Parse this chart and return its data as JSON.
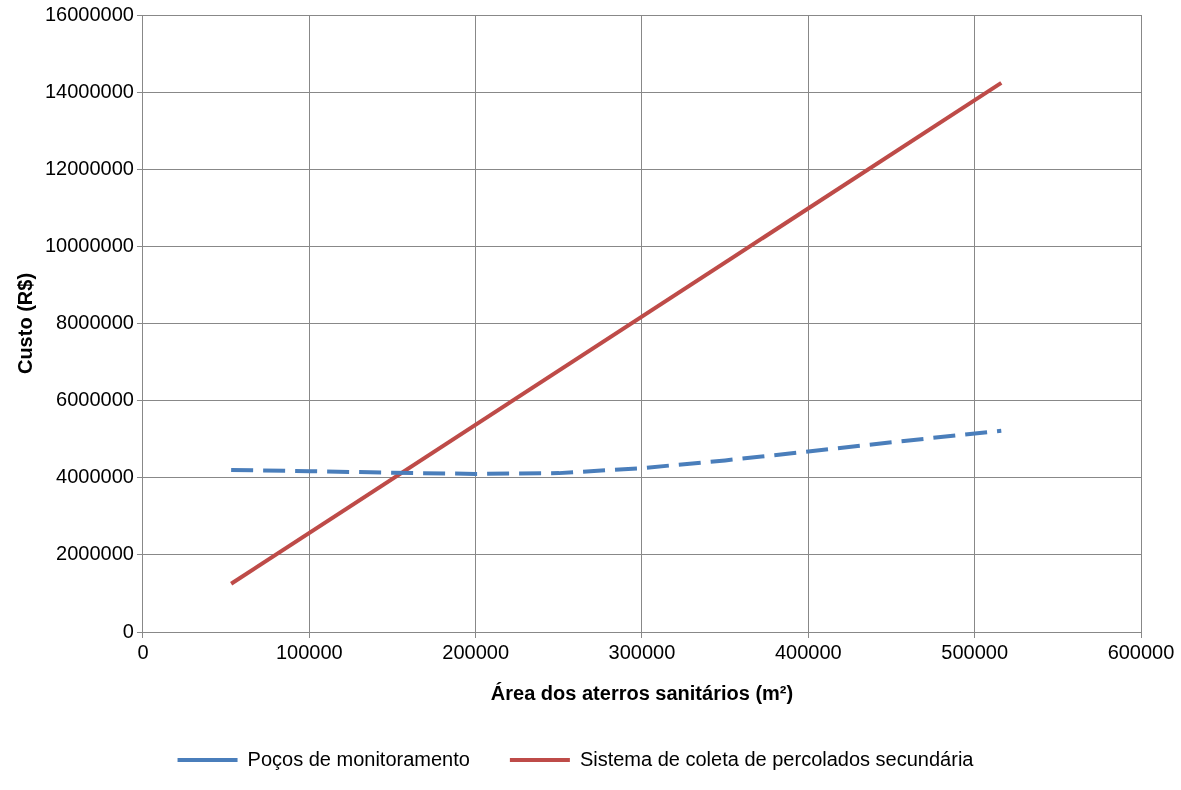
{
  "chart_data": {
    "type": "line",
    "xlabel": "Área dos aterros sanitários (m²)",
    "ylabel": "Custo (R$)",
    "xlim": [
      0,
      600000
    ],
    "xticks": [
      0,
      100000,
      200000,
      300000,
      400000,
      500000,
      600000
    ],
    "ylim": [
      0,
      16000000
    ],
    "yticks": [
      0,
      2000000,
      4000000,
      6000000,
      8000000,
      10000000,
      12000000,
      14000000,
      16000000
    ],
    "grid": true,
    "legend": "bottom",
    "marker": "none",
    "series": [
      {
        "name": "Poços de monitoramento",
        "color": "#4a7ebb",
        "line_style": "dashed",
        "x": [
          53000,
          100000,
          150000,
          200000,
          250000,
          300000,
          350000,
          400000,
          450000,
          516000
        ],
        "values": [
          4200000,
          4170000,
          4130000,
          4100000,
          4120000,
          4250000,
          4450000,
          4680000,
          4920000,
          5220000
        ]
      },
      {
        "name": "Sistema de coleta de percolados secundária",
        "color": "#be4b48",
        "line_style": "solid",
        "x": [
          53000,
          516000
        ],
        "values": [
          1250000,
          14240000
        ]
      }
    ]
  }
}
